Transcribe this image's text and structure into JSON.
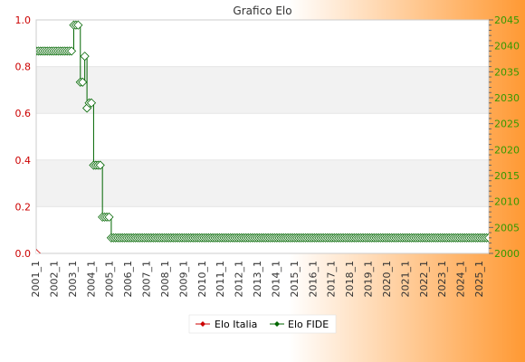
{
  "chart_data": {
    "type": "line",
    "title": "Grafico Elo",
    "colors": {
      "left_axis": "#cc0000",
      "right_axis": "#339900",
      "fide_line": "#006600",
      "italia_line": "#cc0000",
      "band": "#f2f2f2",
      "background_gradient_start": "#ffffff",
      "background_gradient_end": "#ff9933"
    },
    "left_axis": {
      "ylim": [
        0.0,
        1.0
      ],
      "ticks": [
        "0.0",
        "0.2",
        "0.4",
        "0.6",
        "0.8",
        "1.0"
      ]
    },
    "right_axis": {
      "ylim": [
        2000,
        2045
      ],
      "ticks": [
        "2000",
        "2005",
        "2010",
        "2015",
        "2020",
        "2025",
        "2030",
        "2035",
        "2040",
        "2045"
      ]
    },
    "grid": true,
    "legend": {
      "placement": "bottom-center",
      "entries": [
        "Elo Italia",
        "Elo FIDE"
      ]
    },
    "series": [
      {
        "name": "Elo Italia",
        "axis": "left",
        "marker": "diamond",
        "points": [
          [
            1,
            0.0
          ]
        ]
      },
      {
        "name": "Elo FIDE",
        "axis": "right",
        "marker": "diamond",
        "points": [
          [
            1,
            2039
          ],
          [
            2,
            2039
          ],
          [
            3,
            2039
          ],
          [
            4,
            2039
          ],
          [
            5,
            2039
          ],
          [
            6,
            2039
          ],
          [
            7,
            2039
          ],
          [
            8,
            2039
          ],
          [
            9,
            2039
          ],
          [
            10,
            2039
          ],
          [
            11,
            2039
          ],
          [
            12,
            2039
          ],
          [
            13,
            2039
          ],
          [
            14,
            2039
          ],
          [
            15,
            2039
          ],
          [
            16,
            2039
          ],
          [
            17,
            2039
          ],
          [
            18,
            2044
          ],
          [
            19,
            2044
          ],
          [
            20,
            2044
          ],
          [
            21,
            2033
          ],
          [
            22,
            2033
          ],
          [
            23,
            2038
          ],
          [
            24,
            2028
          ],
          [
            25,
            2029
          ],
          [
            26,
            2029
          ],
          [
            27,
            2017
          ],
          [
            28,
            2017
          ],
          [
            29,
            2017
          ],
          [
            30,
            2017
          ],
          [
            31,
            2007
          ],
          [
            32,
            2007
          ],
          [
            33,
            2007
          ],
          [
            34,
            2007
          ],
          [
            35,
            2003
          ],
          [
            36,
            2003
          ],
          [
            37,
            2003
          ],
          [
            38,
            2003
          ],
          [
            39,
            2003
          ],
          [
            40,
            2003
          ],
          [
            41,
            2003
          ],
          [
            42,
            2003
          ],
          [
            43,
            2003
          ],
          [
            44,
            2003
          ],
          [
            45,
            2003
          ],
          [
            46,
            2003
          ],
          [
            47,
            2003
          ],
          [
            48,
            2003
          ],
          [
            49,
            2003
          ],
          [
            50,
            2003
          ],
          [
            51,
            2003
          ],
          [
            52,
            2003
          ],
          [
            53,
            2003
          ],
          [
            54,
            2003
          ],
          [
            55,
            2003
          ],
          [
            56,
            2003
          ],
          [
            57,
            2003
          ],
          [
            58,
            2003
          ],
          [
            59,
            2003
          ],
          [
            60,
            2003
          ],
          [
            61,
            2003
          ],
          [
            62,
            2003
          ],
          [
            63,
            2003
          ],
          [
            64,
            2003
          ],
          [
            65,
            2003
          ],
          [
            66,
            2003
          ],
          [
            67,
            2003
          ],
          [
            68,
            2003
          ],
          [
            69,
            2003
          ],
          [
            70,
            2003
          ],
          [
            71,
            2003
          ],
          [
            72,
            2003
          ],
          [
            73,
            2003
          ],
          [
            74,
            2003
          ],
          [
            75,
            2003
          ],
          [
            76,
            2003
          ],
          [
            77,
            2003
          ],
          [
            78,
            2003
          ],
          [
            79,
            2003
          ],
          [
            80,
            2003
          ],
          [
            81,
            2003
          ],
          [
            82,
            2003
          ],
          [
            83,
            2003
          ],
          [
            84,
            2003
          ],
          [
            85,
            2003
          ],
          [
            86,
            2003
          ],
          [
            87,
            2003
          ],
          [
            88,
            2003
          ],
          [
            89,
            2003
          ],
          [
            90,
            2003
          ],
          [
            91,
            2003
          ],
          [
            92,
            2003
          ],
          [
            93,
            2003
          ],
          [
            94,
            2003
          ],
          [
            95,
            2003
          ],
          [
            96,
            2003
          ],
          [
            97,
            2003
          ],
          [
            98,
            2003
          ],
          [
            99,
            2003
          ],
          [
            100,
            2003
          ],
          [
            101,
            2003
          ],
          [
            102,
            2003
          ],
          [
            103,
            2003
          ],
          [
            104,
            2003
          ],
          [
            105,
            2003
          ],
          [
            106,
            2003
          ],
          [
            107,
            2003
          ],
          [
            108,
            2003
          ],
          [
            109,
            2003
          ],
          [
            110,
            2003
          ],
          [
            111,
            2003
          ],
          [
            112,
            2003
          ],
          [
            113,
            2003
          ],
          [
            114,
            2003
          ],
          [
            115,
            2003
          ],
          [
            116,
            2003
          ],
          [
            117,
            2003
          ],
          [
            118,
            2003
          ],
          [
            119,
            2003
          ],
          [
            120,
            2003
          ],
          [
            121,
            2003
          ],
          [
            122,
            2003
          ],
          [
            123,
            2003
          ],
          [
            124,
            2003
          ],
          [
            125,
            2003
          ],
          [
            126,
            2003
          ],
          [
            127,
            2003
          ],
          [
            128,
            2003
          ],
          [
            129,
            2003
          ],
          [
            130,
            2003
          ],
          [
            131,
            2003
          ],
          [
            132,
            2003
          ],
          [
            133,
            2003
          ],
          [
            134,
            2003
          ],
          [
            135,
            2003
          ],
          [
            136,
            2003
          ],
          [
            137,
            2003
          ],
          [
            138,
            2003
          ],
          [
            139,
            2003
          ],
          [
            140,
            2003
          ],
          [
            141,
            2003
          ],
          [
            142,
            2003
          ],
          [
            143,
            2003
          ],
          [
            144,
            2003
          ],
          [
            145,
            2003
          ],
          [
            146,
            2003
          ],
          [
            147,
            2003
          ],
          [
            148,
            2003
          ],
          [
            149,
            2003
          ],
          [
            150,
            2003
          ],
          [
            151,
            2003
          ],
          [
            152,
            2003
          ],
          [
            153,
            2003
          ],
          [
            154,
            2003
          ],
          [
            155,
            2003
          ],
          [
            156,
            2003
          ],
          [
            157,
            2003
          ],
          [
            158,
            2003
          ],
          [
            159,
            2003
          ],
          [
            160,
            2003
          ],
          [
            161,
            2003
          ],
          [
            162,
            2003
          ],
          [
            163,
            2003
          ],
          [
            164,
            2003
          ],
          [
            165,
            2003
          ],
          [
            166,
            2003
          ],
          [
            167,
            2003
          ],
          [
            168,
            2003
          ],
          [
            169,
            2003
          ],
          [
            170,
            2003
          ],
          [
            171,
            2003
          ],
          [
            172,
            2003
          ],
          [
            173,
            2003
          ],
          [
            174,
            2003
          ],
          [
            175,
            2003
          ],
          [
            176,
            2003
          ],
          [
            177,
            2003
          ],
          [
            178,
            2003
          ],
          [
            179,
            2003
          ],
          [
            180,
            2003
          ],
          [
            181,
            2003
          ],
          [
            182,
            2003
          ],
          [
            183,
            2003
          ],
          [
            184,
            2003
          ],
          [
            185,
            2003
          ],
          [
            186,
            2003
          ],
          [
            187,
            2003
          ],
          [
            188,
            2003
          ],
          [
            189,
            2003
          ],
          [
            190,
            2003
          ],
          [
            191,
            2003
          ],
          [
            192,
            2003
          ],
          [
            193,
            2003
          ],
          [
            194,
            2003
          ],
          [
            195,
            2003
          ],
          [
            196,
            2003
          ],
          [
            197,
            2003
          ],
          [
            198,
            2003
          ],
          [
            199,
            2003
          ],
          [
            200,
            2003
          ],
          [
            201,
            2003
          ],
          [
            202,
            2003
          ],
          [
            203,
            2003
          ],
          [
            204,
            2003
          ],
          [
            205,
            2003
          ],
          [
            206,
            2003
          ]
        ]
      }
    ],
    "x_tick_labels": [
      "2001_1",
      "2002_1",
      "2003_1",
      "2004_1",
      "2005_1",
      "2006_1",
      "2007_1",
      "2008_1",
      "2009_1",
      "2010_1",
      "2011_1",
      "2012_1",
      "2013_1",
      "2014_1",
      "2015_1",
      "2016_1",
      "2017_1",
      "2018_1",
      "2019_1",
      "2020_1",
      "2021_1",
      "2022_1",
      "2023_1",
      "2024_1",
      "2025_1"
    ]
  }
}
